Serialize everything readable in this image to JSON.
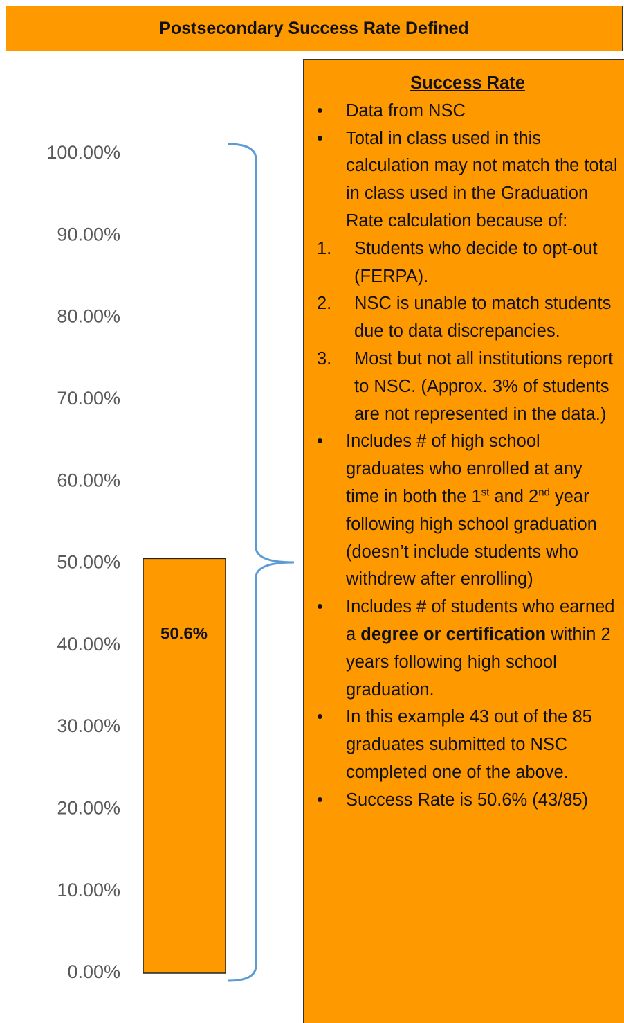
{
  "header": {
    "title": "Postsecondary Success Rate Defined"
  },
  "chart_data": {
    "type": "bar",
    "categories": [
      null
    ],
    "values": [
      50.6
    ],
    "value_labels": [
      "50.6%"
    ],
    "color": "#ff9900",
    "ylim": [
      0,
      100
    ],
    "yticks": [
      {
        "value": 0,
        "label": "0.00%"
      },
      {
        "value": 10,
        "label": "10.00%"
      },
      {
        "value": 20,
        "label": "20.00%"
      },
      {
        "value": 30,
        "label": "30.00%"
      },
      {
        "value": 40,
        "label": "40.00%"
      },
      {
        "value": 50,
        "label": "50.00%"
      },
      {
        "value": 60,
        "label": "60.00%"
      },
      {
        "value": 70,
        "label": "70.00%"
      },
      {
        "value": 80,
        "label": "80.00%"
      },
      {
        "value": 90,
        "label": "90.00%"
      },
      {
        "value": 100,
        "label": "100.00%"
      }
    ],
    "grid": false
  },
  "panel": {
    "title": "Success Rate",
    "items": [
      {
        "marker": "•",
        "runs": [
          {
            "text": "Data from NSC"
          }
        ]
      },
      {
        "marker": "•",
        "runs": [
          {
            "text": "Total in class used in this calculation may not match the total in class used in the Graduation Rate calculation because of:"
          }
        ]
      },
      {
        "marker": "1.",
        "runs": [
          {
            "text": "Students who decide to opt-out (FERPA)."
          }
        ]
      },
      {
        "marker": "2.",
        "runs": [
          {
            "text": "NSC is unable to match students due to data discrepancies."
          }
        ]
      },
      {
        "marker": "3.",
        "runs": [
          {
            "text": "Most but not all institutions report to NSC. (Approx. 3% of students are not represented in the data.)"
          }
        ]
      },
      {
        "marker": "•",
        "runs": [
          {
            "text": "Includes # of high school graduates who enrolled at any time in both the 1"
          },
          {
            "text": "st",
            "style": "sup"
          },
          {
            "text": " and 2"
          },
          {
            "text": "nd",
            "style": "sup"
          },
          {
            "text": " year following high school graduation (doesn’t include students who withdrew after enrolling)"
          }
        ]
      },
      {
        "marker": "•",
        "runs": [
          {
            "text": "Includes # of students who earned a "
          },
          {
            "text": "degree or certification",
            "style": "bold"
          },
          {
            "text": " within 2 years following high school graduation."
          }
        ]
      },
      {
        "marker": "•",
        "runs": [
          {
            "text": "In this example 43 out of the 85 graduates submitted to NSC completed one of the above."
          }
        ]
      },
      {
        "marker": "•",
        "runs": [
          {
            "text": "Success Rate is 50.6% (43/85)"
          }
        ]
      }
    ]
  }
}
